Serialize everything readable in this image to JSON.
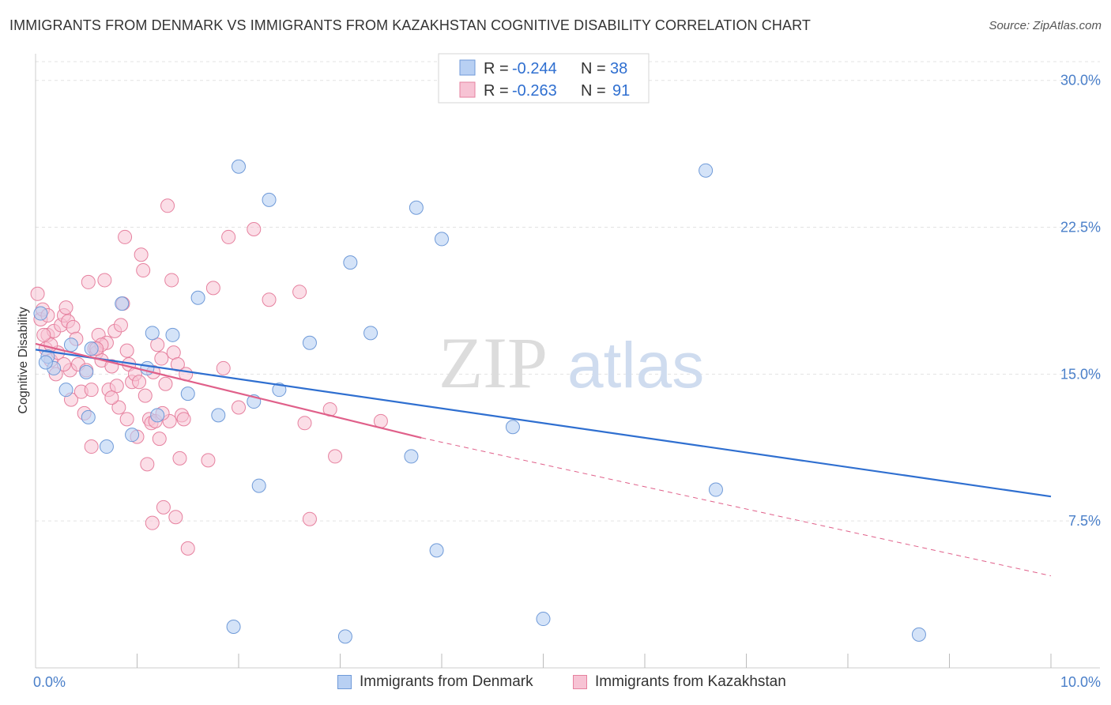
{
  "title": "IMMIGRANTS FROM DENMARK VS IMMIGRANTS FROM KAZAKHSTAN COGNITIVE DISABILITY CORRELATION CHART",
  "source": "Source: ZipAtlas.com",
  "watermark": {
    "zip": "ZIP",
    "atlas": "atlas"
  },
  "colors": {
    "denmark_fill": "#b8d0f3",
    "denmark_stroke": "#6f9ad8",
    "denmark_line": "#2f6fd0",
    "kazakhstan_fill": "#f7c3d4",
    "kazakhstan_stroke": "#e6819f",
    "kazakhstan_line": "#e0608a",
    "axis_text": "#4a7fc9",
    "grid": "#e3e3e3"
  },
  "legend": {
    "r_label": "R =",
    "n_label": "N =",
    "denmark": {
      "r": "-0.244",
      "n": "38"
    },
    "kazakhstan": {
      "r": "-0.263",
      "n": "91"
    }
  },
  "chart_data": {
    "type": "scatter",
    "title": "IMMIGRANTS FROM DENMARK VS IMMIGRANTS FROM KAZAKHSTAN COGNITIVE DISABILITY CORRELATION CHART",
    "xlabel": "",
    "ylabel": "Cognitive Disability",
    "xlim": [
      0,
      10
    ],
    "ylim": [
      0,
      31.2
    ],
    "x_tick_labels": [
      "0.0%",
      "10.0%"
    ],
    "y_ticks": [
      7.5,
      15.0,
      22.5,
      30.0
    ],
    "y_tick_labels": [
      "7.5%",
      "15.0%",
      "22.5%",
      "30.0%"
    ],
    "grid": true,
    "legend_position": "top-center",
    "series": [
      {
        "name": "Immigrants from Denmark",
        "points": [
          [
            0.05,
            18.1
          ],
          [
            0.12,
            15.9
          ],
          [
            0.18,
            15.3
          ],
          [
            0.35,
            16.5
          ],
          [
            0.5,
            15.1
          ],
          [
            0.52,
            12.8
          ],
          [
            0.55,
            16.3
          ],
          [
            0.7,
            11.3
          ],
          [
            0.85,
            18.6
          ],
          [
            0.95,
            11.9
          ],
          [
            1.1,
            15.3
          ],
          [
            1.15,
            17.1
          ],
          [
            1.2,
            12.9
          ],
          [
            1.35,
            17.0
          ],
          [
            1.5,
            14.0
          ],
          [
            1.6,
            18.9
          ],
          [
            1.8,
            12.9
          ],
          [
            1.95,
            2.1
          ],
          [
            2.0,
            25.6
          ],
          [
            2.15,
            13.6
          ],
          [
            2.2,
            9.3
          ],
          [
            2.3,
            23.9
          ],
          [
            2.4,
            14.2
          ],
          [
            2.7,
            16.6
          ],
          [
            3.05,
            1.6
          ],
          [
            3.1,
            20.7
          ],
          [
            3.3,
            17.1
          ],
          [
            3.7,
            10.8
          ],
          [
            3.75,
            23.5
          ],
          [
            3.95,
            6.0
          ],
          [
            4.0,
            21.9
          ],
          [
            4.7,
            12.3
          ],
          [
            5.0,
            2.5
          ],
          [
            6.6,
            25.4
          ],
          [
            6.7,
            9.1
          ],
          [
            8.7,
            1.7
          ],
          [
            0.3,
            14.2
          ],
          [
            0.1,
            15.6
          ]
        ]
      },
      {
        "name": "Immigrants from Kazakhstan",
        "points": [
          [
            0.02,
            19.1
          ],
          [
            0.05,
            17.8
          ],
          [
            0.07,
            18.3
          ],
          [
            0.1,
            16.3
          ],
          [
            0.12,
            17.0
          ],
          [
            0.15,
            15.7
          ],
          [
            0.18,
            17.2
          ],
          [
            0.2,
            15.0
          ],
          [
            0.22,
            16.1
          ],
          [
            0.25,
            17.5
          ],
          [
            0.28,
            18.0
          ],
          [
            0.3,
            18.4
          ],
          [
            0.32,
            17.7
          ],
          [
            0.34,
            15.2
          ],
          [
            0.35,
            13.7
          ],
          [
            0.37,
            17.4
          ],
          [
            0.4,
            16.8
          ],
          [
            0.42,
            15.5
          ],
          [
            0.45,
            14.1
          ],
          [
            0.48,
            13.0
          ],
          [
            0.5,
            15.2
          ],
          [
            0.52,
            19.7
          ],
          [
            0.55,
            11.3
          ],
          [
            0.58,
            16.3
          ],
          [
            0.6,
            16.1
          ],
          [
            0.62,
            17.0
          ],
          [
            0.65,
            15.7
          ],
          [
            0.68,
            19.8
          ],
          [
            0.7,
            16.6
          ],
          [
            0.72,
            14.2
          ],
          [
            0.75,
            15.4
          ],
          [
            0.78,
            17.2
          ],
          [
            0.8,
            14.4
          ],
          [
            0.82,
            13.3
          ],
          [
            0.84,
            17.5
          ],
          [
            0.86,
            18.6
          ],
          [
            0.88,
            22.0
          ],
          [
            0.9,
            16.2
          ],
          [
            0.92,
            15.5
          ],
          [
            0.95,
            14.6
          ],
          [
            0.98,
            15.0
          ],
          [
            1.0,
            11.8
          ],
          [
            1.02,
            14.6
          ],
          [
            1.04,
            21.1
          ],
          [
            1.06,
            20.3
          ],
          [
            1.08,
            13.9
          ],
          [
            1.1,
            10.4
          ],
          [
            1.12,
            12.7
          ],
          [
            1.14,
            12.5
          ],
          [
            1.16,
            15.1
          ],
          [
            1.18,
            12.6
          ],
          [
            1.2,
            16.5
          ],
          [
            1.22,
            11.7
          ],
          [
            1.24,
            15.8
          ],
          [
            1.26,
            8.2
          ],
          [
            1.28,
            14.5
          ],
          [
            1.3,
            23.6
          ],
          [
            1.32,
            12.6
          ],
          [
            1.34,
            19.8
          ],
          [
            1.36,
            16.1
          ],
          [
            1.38,
            7.7
          ],
          [
            1.4,
            15.5
          ],
          [
            1.42,
            10.7
          ],
          [
            1.44,
            12.9
          ],
          [
            1.46,
            12.7
          ],
          [
            1.48,
            15.0
          ],
          [
            1.5,
            6.1
          ],
          [
            1.7,
            10.6
          ],
          [
            1.75,
            19.4
          ],
          [
            1.85,
            15.3
          ],
          [
            1.9,
            22.0
          ],
          [
            2.0,
            13.3
          ],
          [
            2.15,
            22.4
          ],
          [
            2.3,
            18.8
          ],
          [
            2.6,
            19.2
          ],
          [
            2.65,
            12.5
          ],
          [
            2.7,
            7.6
          ],
          [
            2.9,
            13.2
          ],
          [
            2.95,
            10.8
          ],
          [
            3.4,
            12.6
          ],
          [
            0.15,
            16.5
          ],
          [
            0.55,
            14.2
          ],
          [
            0.65,
            16.5
          ],
          [
            0.75,
            13.8
          ],
          [
            1.15,
            7.4
          ],
          [
            1.25,
            13.0
          ],
          [
            0.08,
            17.0
          ],
          [
            0.12,
            18.0
          ],
          [
            0.28,
            15.5
          ],
          [
            0.6,
            16.3
          ],
          [
            0.9,
            12.7
          ]
        ]
      }
    ],
    "trendlines": [
      {
        "name": "Immigrants from Denmark",
        "x": [
          0.0,
          10.0
        ],
        "y": [
          16.25,
          8.75
        ],
        "style": "solid"
      },
      {
        "name": "Immigrants from Kazakhstan",
        "x": [
          0.0,
          3.8
        ],
        "y": [
          16.55,
          11.75
        ],
        "style": "solid"
      },
      {
        "name": "Immigrants from Kazakhstan",
        "x": [
          3.8,
          10.0
        ],
        "y": [
          11.75,
          4.7
        ],
        "style": "dashed"
      }
    ]
  },
  "bottom_legend": [
    "Immigrants from Denmark",
    "Immigrants from Kazakhstan"
  ]
}
